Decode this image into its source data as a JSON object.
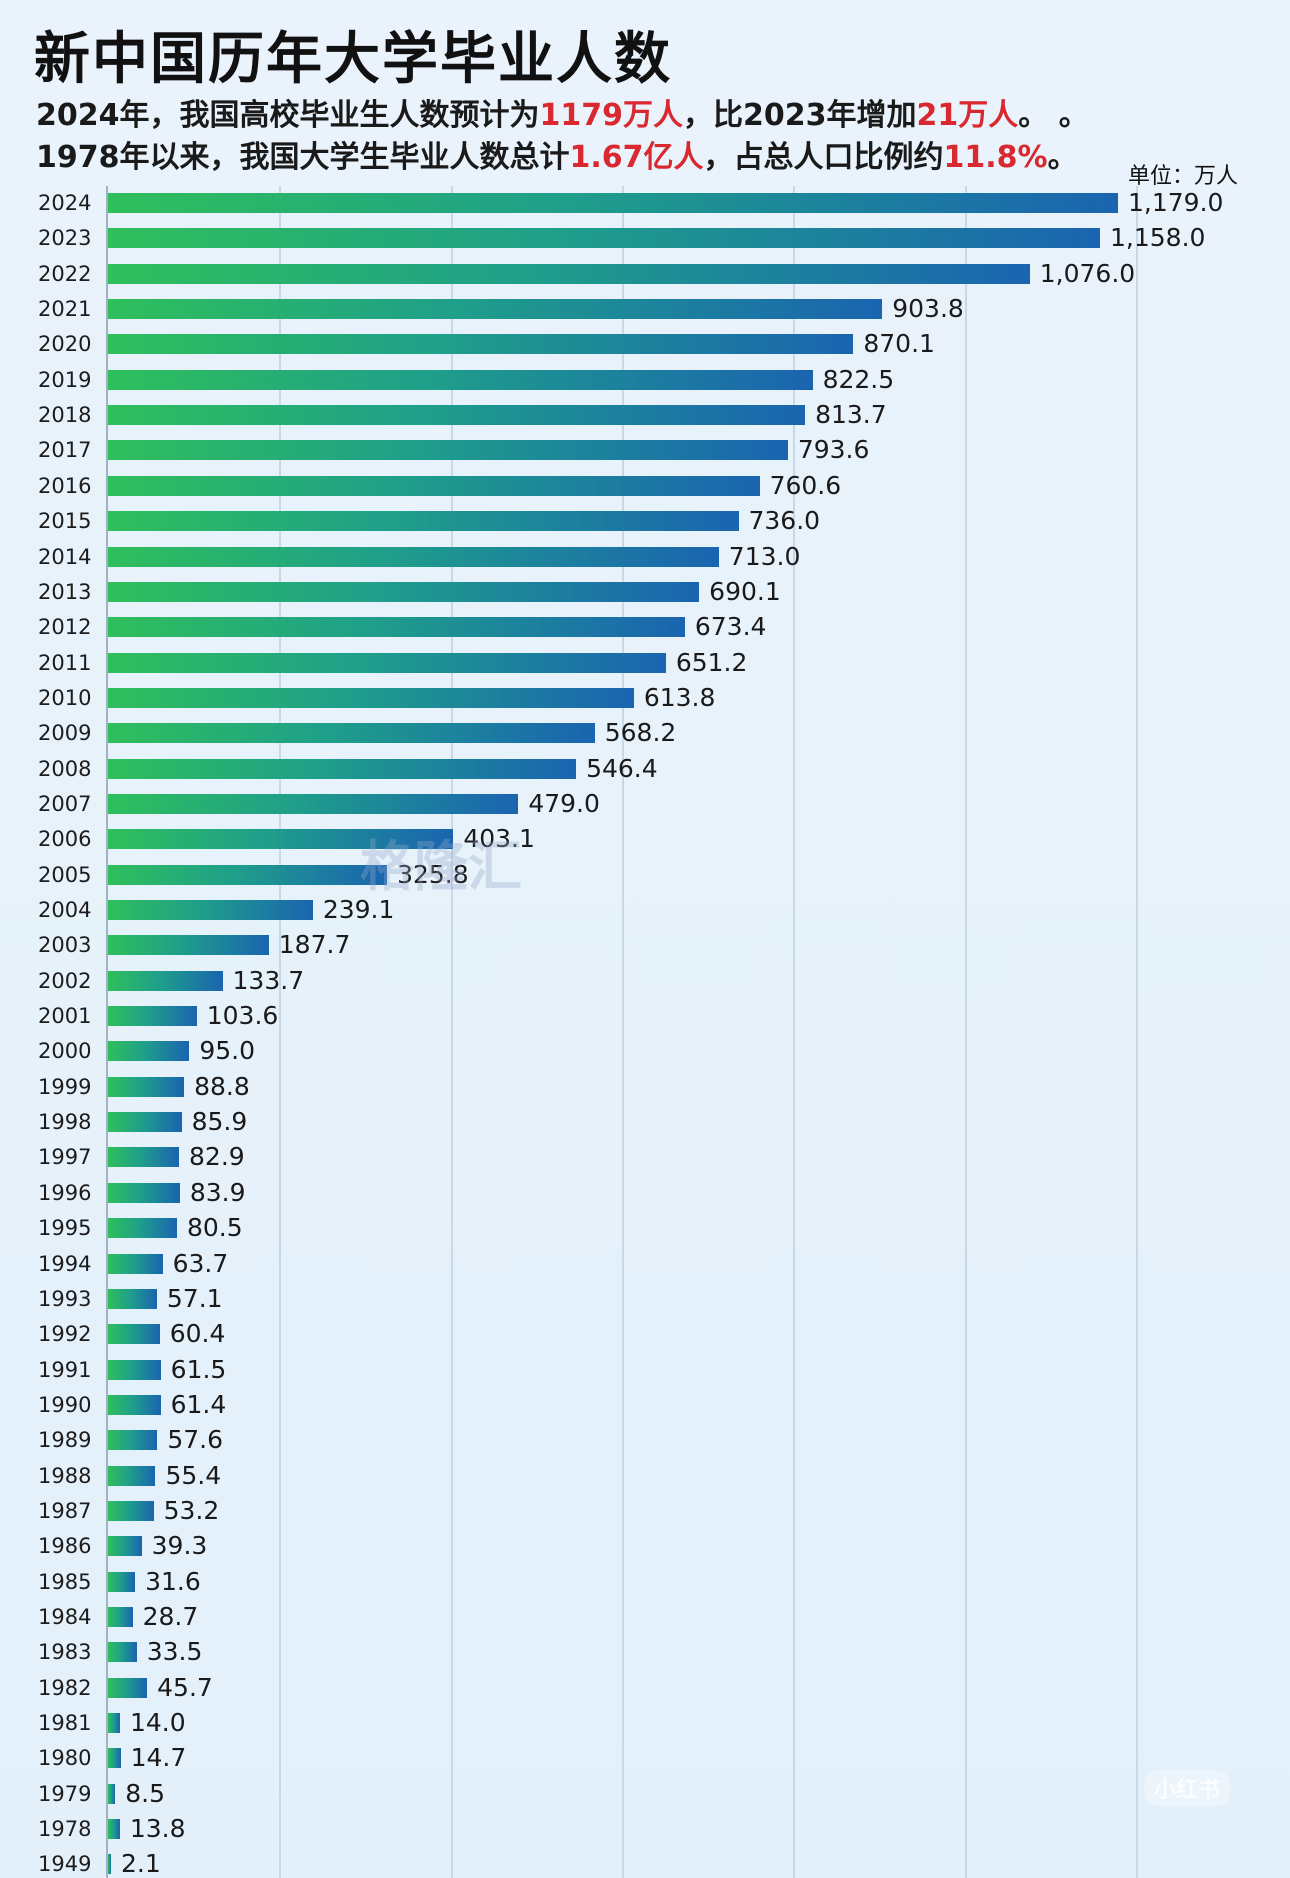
{
  "header": {
    "title": "新中国历年大学毕业人数",
    "line1": {
      "p1": "2024年，我国高校毕业生人数预计为",
      "h1": "1179万人",
      "p2": "，比2023年增加",
      "h2": "21万人",
      "p3": "。 。"
    },
    "line2": {
      "p1": "1978年以来，我国大学生毕业人数总计",
      "h1": "1.67亿人",
      "p2": "，占总人口比例约",
      "h2": "11.8%",
      "p3": "。"
    },
    "unit": "单位：万人"
  },
  "watermarks": {
    "center": "格隆汇",
    "corner": "小红书"
  },
  "colors": {
    "highlight": "#d9282f",
    "bar_start": "#2fbf5b",
    "bar_end": "#1a64b0"
  },
  "chart_data": {
    "type": "bar",
    "orientation": "horizontal",
    "categories": [
      "2024",
      "2023",
      "2022",
      "2021",
      "2020",
      "2019",
      "2018",
      "2017",
      "2016",
      "2015",
      "2014",
      "2013",
      "2012",
      "2011",
      "2010",
      "2009",
      "2008",
      "2007",
      "2006",
      "2005",
      "2004",
      "2003",
      "2002",
      "2001",
      "2000",
      "1999",
      "1998",
      "1997",
      "1996",
      "1995",
      "1994",
      "1993",
      "1992",
      "1991",
      "1990",
      "1989",
      "1988",
      "1987",
      "1986",
      "1985",
      "1984",
      "1983",
      "1982",
      "1981",
      "1980",
      "1979",
      "1978",
      "1949"
    ],
    "values": [
      1179.0,
      1158.0,
      1076.0,
      903.8,
      870.1,
      822.5,
      813.7,
      793.6,
      760.6,
      736.0,
      713.0,
      690.1,
      673.4,
      651.2,
      613.8,
      568.2,
      546.4,
      479.0,
      403.1,
      325.8,
      239.1,
      187.7,
      133.7,
      103.6,
      95.0,
      88.8,
      85.9,
      82.9,
      83.9,
      80.5,
      63.7,
      57.1,
      60.4,
      61.5,
      61.4,
      57.6,
      55.4,
      53.2,
      39.3,
      31.6,
      28.7,
      33.5,
      45.7,
      14.0,
      14.7,
      8.5,
      13.8,
      2.1
    ],
    "labels": [
      "1,179.0",
      "1,158.0",
      "1,076.0",
      "903.8",
      "870.1",
      "822.5",
      "813.7",
      "793.6",
      "760.6",
      "736.0",
      "713.0",
      "690.1",
      "673.4",
      "651.2",
      "613.8",
      "568.2",
      "546.4",
      "479.0",
      "403.1",
      "325.8",
      "239.1",
      "187.7",
      "133.7",
      "103.6",
      "95.0",
      "88.8",
      "85.9",
      "82.9",
      "83.9",
      "80.5",
      "63.7",
      "57.1",
      "60.4",
      "61.5",
      "61.4",
      "57.6",
      "55.4",
      "53.2",
      "39.3",
      "31.6",
      "28.7",
      "33.5",
      "45.7",
      "14.0",
      "14.7",
      "8.5",
      "13.8",
      "2.1"
    ],
    "xlim": [
      0,
      1400
    ],
    "grid_values": [
      200,
      400,
      600,
      800,
      1000,
      1200
    ],
    "grid": true
  }
}
